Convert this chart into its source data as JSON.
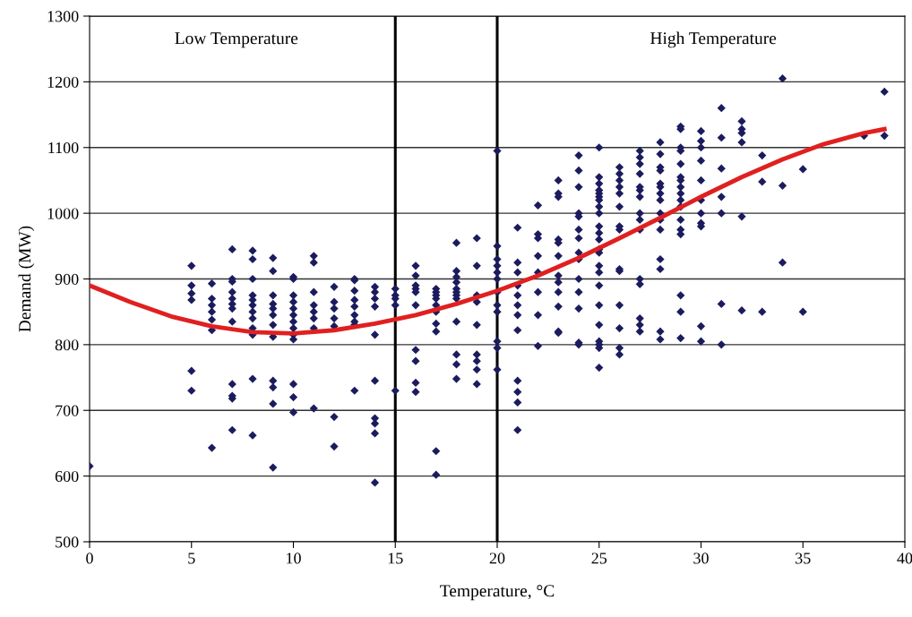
{
  "chart_data": {
    "type": "scatter",
    "xlabel": "Temperature, °C",
    "ylabel": "Demand (MW)",
    "annotations": [
      "Low Temperature",
      "High Temperature"
    ],
    "xlim": [
      0,
      40
    ],
    "xticks": [
      0,
      5,
      10,
      15,
      20,
      25,
      30,
      35,
      40
    ],
    "ylim": [
      500,
      1300
    ],
    "yticks": [
      500,
      600,
      700,
      800,
      900,
      1000,
      1100,
      1200,
      1300
    ],
    "grid": "y",
    "marker": "diamond",
    "ref_lines": [
      {
        "axis": "x",
        "value": 15,
        "color": "#000000"
      },
      {
        "axis": "x",
        "value": 20,
        "color": "#000000"
      }
    ],
    "series": [
      {
        "color": "#1b1b5e",
        "x": [
          0,
          5,
          5,
          5,
          5,
          5,
          5,
          6,
          6,
          6,
          6,
          6,
          6,
          6,
          7,
          7,
          7,
          7,
          7,
          7,
          7,
          7,
          7,
          7,
          7,
          7,
          8,
          8,
          8,
          8,
          8,
          8,
          8,
          8,
          8,
          8,
          8,
          8,
          9,
          9,
          9,
          9,
          9,
          9,
          9,
          9,
          9,
          9,
          9,
          9,
          10,
          10,
          10,
          10,
          10,
          10,
          10,
          10,
          10,
          10,
          10,
          10,
          10,
          11,
          11,
          11,
          11,
          11,
          11,
          11,
          11,
          12,
          12,
          12,
          12,
          12,
          12,
          12,
          13,
          13,
          13,
          13,
          13,
          13,
          13,
          13,
          13,
          14,
          14,
          14,
          14,
          14,
          14,
          14,
          14,
          14,
          14,
          15,
          15,
          15,
          15,
          15,
          16,
          16,
          16,
          16,
          16,
          16,
          16,
          16,
          16,
          16,
          17,
          17,
          17,
          17,
          17,
          17,
          17,
          17,
          17,
          17,
          18,
          18,
          18,
          18,
          18,
          18,
          18,
          18,
          18,
          18,
          18,
          18,
          19,
          19,
          19,
          19,
          19,
          19,
          19,
          19,
          19,
          20,
          20,
          20,
          20,
          20,
          20,
          20,
          20,
          20,
          20,
          20,
          20,
          21,
          21,
          21,
          21,
          21,
          21,
          21,
          21,
          21,
          21,
          21,
          21,
          22,
          22,
          22,
          22,
          22,
          22,
          22,
          22,
          23,
          23,
          23,
          23,
          23,
          23,
          23,
          23,
          23,
          23,
          23,
          23,
          24,
          24,
          24,
          24,
          24,
          24,
          24,
          24,
          24,
          24,
          24,
          24,
          24,
          24,
          25,
          25,
          25,
          25,
          25,
          25,
          25,
          25,
          25,
          25,
          25,
          25,
          25,
          25,
          25,
          25,
          25,
          25,
          25,
          25,
          25,
          25,
          25,
          26,
          26,
          26,
          26,
          26,
          26,
          26,
          26,
          26,
          26,
          26,
          26,
          26,
          26,
          27,
          27,
          27,
          27,
          27,
          27,
          27,
          27,
          27,
          27,
          27,
          27,
          27,
          27,
          27,
          28,
          28,
          28,
          28,
          28,
          28,
          28,
          28,
          28,
          28,
          28,
          28,
          28,
          28,
          28,
          29,
          29,
          29,
          29,
          29,
          29,
          29,
          29,
          29,
          29,
          29,
          29,
          29,
          29,
          29,
          29,
          29,
          30,
          30,
          30,
          30,
          30,
          30,
          30,
          30,
          30,
          30,
          30,
          31,
          31,
          31,
          31,
          31,
          31,
          31,
          32,
          32,
          32,
          32,
          32,
          32,
          33,
          33,
          33,
          34,
          34,
          34,
          35,
          35,
          38,
          39,
          39
        ],
        "values": [
          615,
          920,
          890,
          878,
          868,
          760,
          730,
          893,
          870,
          860,
          850,
          838,
          822,
          643,
          945,
          900,
          896,
          880,
          870,
          862,
          855,
          835,
          740,
          722,
          718,
          670,
          943,
          930,
          900,
          875,
          868,
          860,
          850,
          840,
          825,
          815,
          748,
          662,
          932,
          912,
          875,
          862,
          855,
          845,
          830,
          812,
          745,
          735,
          710,
          613,
          903,
          900,
          875,
          865,
          855,
          845,
          835,
          825,
          815,
          808,
          740,
          720,
          697,
          935,
          925,
          880,
          860,
          850,
          840,
          825,
          703,
          888,
          865,
          855,
          840,
          828,
          690,
          645,
          900,
          898,
          882,
          868,
          858,
          845,
          835,
          830,
          730,
          888,
          880,
          870,
          858,
          815,
          745,
          688,
          680,
          665,
          590,
          885,
          875,
          870,
          860,
          730,
          920,
          905,
          890,
          885,
          880,
          860,
          792,
          775,
          742,
          728,
          885,
          880,
          875,
          870,
          860,
          850,
          832,
          820,
          638,
          602,
          955,
          912,
          903,
          895,
          885,
          880,
          875,
          870,
          835,
          785,
          770,
          748,
          962,
          920,
          875,
          865,
          830,
          785,
          775,
          762,
          740,
          1095,
          950,
          930,
          920,
          910,
          900,
          880,
          860,
          850,
          805,
          795,
          762,
          978,
          925,
          910,
          890,
          875,
          860,
          845,
          822,
          745,
          728,
          712,
          670,
          1012,
          968,
          962,
          935,
          910,
          880,
          845,
          798,
          1050,
          1030,
          1025,
          960,
          955,
          935,
          905,
          895,
          880,
          858,
          820,
          818,
          1088,
          1065,
          1040,
          1000,
          995,
          975,
          962,
          940,
          930,
          900,
          880,
          855,
          803,
          800,
          1100,
          1055,
          1045,
          1035,
          1030,
          1025,
          1020,
          1010,
          1000,
          980,
          970,
          960,
          945,
          940,
          920,
          910,
          890,
          860,
          830,
          805,
          800,
          795,
          765,
          1070,
          1060,
          1050,
          1040,
          1030,
          1010,
          980,
          975,
          915,
          912,
          860,
          825,
          795,
          785,
          1095,
          1085,
          1075,
          1060,
          1040,
          1035,
          1025,
          1000,
          990,
          975,
          900,
          892,
          840,
          830,
          820,
          1108,
          1090,
          1070,
          1065,
          1045,
          1040,
          1030,
          1020,
          1000,
          990,
          975,
          930,
          915,
          820,
          808,
          1132,
          1128,
          1100,
          1095,
          1075,
          1055,
          1050,
          1040,
          1030,
          1020,
          1010,
          990,
          975,
          968,
          875,
          850,
          810,
          1125,
          1110,
          1100,
          1080,
          1050,
          1020,
          1000,
          985,
          980,
          828,
          805,
          1160,
          1115,
          1068,
          1025,
          1000,
          862,
          800,
          1140,
          1128,
          1122,
          1108,
          995,
          852,
          1088,
          1048,
          850,
          1205,
          1042,
          925,
          1067,
          850,
          1118,
          1185,
          1118
        ]
      },
      {
        "type": "line",
        "color": "#e02020",
        "marker": "none",
        "x": [
          0,
          2,
          4,
          6,
          8,
          10,
          12,
          14,
          16,
          18,
          20,
          22,
          24,
          26,
          28,
          30,
          32,
          34,
          36,
          38,
          39
        ],
        "values": [
          890,
          865,
          843,
          828,
          819,
          817,
          822,
          832,
          845,
          862,
          882,
          905,
          932,
          962,
          993,
          1025,
          1055,
          1082,
          1105,
          1122,
          1128
        ]
      }
    ]
  }
}
